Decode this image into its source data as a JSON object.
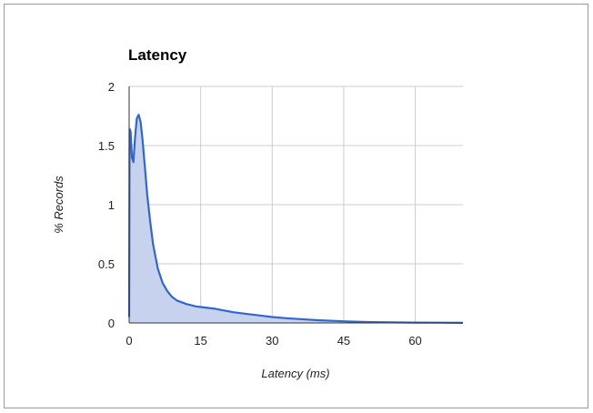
{
  "chart_data": {
    "type": "area",
    "title": "Latency",
    "xlabel": "Latency (ms)",
    "ylabel": "% Records",
    "xlim": [
      0,
      70
    ],
    "ylim": [
      0,
      2
    ],
    "x_ticks": [
      "0",
      "15",
      "30",
      "45",
      "60"
    ],
    "y_ticks": [
      "0",
      "0.5",
      "1",
      "1.5",
      "2"
    ],
    "grid": true,
    "legend": "none",
    "colors": {
      "line": "#3366cc",
      "fill": "#c7d3ee"
    },
    "series": [
      {
        "x": [
          0,
          0.1,
          0.3,
          0.6,
          0.9,
          1.2,
          1.6,
          2.0,
          2.4,
          2.8,
          3.3,
          3.8,
          4.4,
          5.0,
          6.0,
          7.0,
          8.0,
          9.0,
          10,
          12,
          14,
          16,
          18,
          20,
          22,
          25,
          28,
          30,
          33,
          36,
          40,
          45,
          50,
          55,
          60,
          65,
          70
        ],
        "y": [
          0.05,
          1.64,
          1.62,
          1.4,
          1.36,
          1.55,
          1.73,
          1.76,
          1.7,
          1.55,
          1.32,
          1.08,
          0.86,
          0.67,
          0.46,
          0.34,
          0.27,
          0.22,
          0.19,
          0.16,
          0.14,
          0.13,
          0.12,
          0.105,
          0.09,
          0.075,
          0.06,
          0.05,
          0.04,
          0.032,
          0.022,
          0.014,
          0.008,
          0.005,
          0.003,
          0.002,
          0.001
        ]
      }
    ]
  }
}
